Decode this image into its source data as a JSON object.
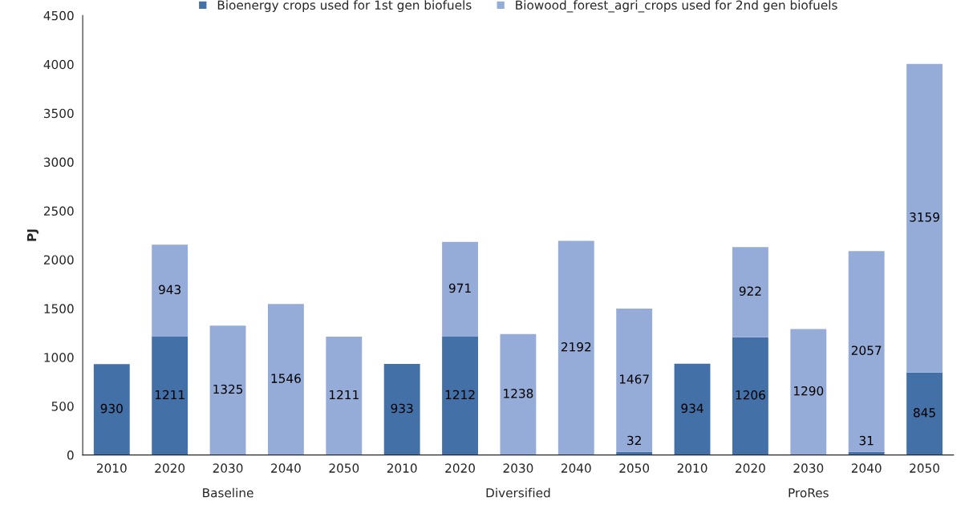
{
  "chart_data": {
    "type": "bar",
    "stacked": true,
    "ylabel": "PJ",
    "categories": [
      "2010",
      "2020",
      "2030",
      "2040",
      "2050",
      "2010",
      "2020",
      "2030",
      "2040",
      "2050",
      "2010",
      "2020",
      "2030",
      "2040",
      "2050"
    ],
    "series": [
      {
        "name": "Bioenergy crops used for 1st gen biofuels",
        "color": "#4470a8",
        "values": [
          930,
          1211,
          null,
          null,
          null,
          933,
          1212,
          null,
          null,
          32,
          934,
          1206,
          null,
          31,
          845
        ]
      },
      {
        "name": "Biowood_forest_agri_crops used for 2nd gen biofuels",
        "color": "#96acd8",
        "values": [
          null,
          943,
          1325,
          1546,
          1211,
          null,
          971,
          1238,
          2192,
          1467,
          null,
          922,
          1290,
          2057,
          3159
        ]
      }
    ],
    "annotations": [
      "Baseline",
      "Diversified",
      "ProRes"
    ],
    "ylim": [
      0,
      4500
    ],
    "yticks": [
      0,
      500,
      1000,
      1500,
      2000,
      2500,
      3000,
      3500,
      4000,
      4500
    ],
    "data_labels": true,
    "grid": false,
    "legend": "top"
  }
}
